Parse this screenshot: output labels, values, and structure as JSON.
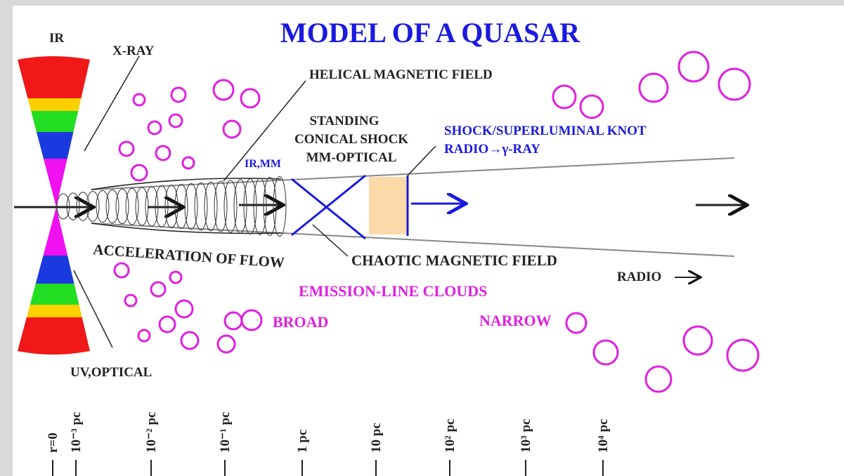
{
  "title": "MODEL OF A QUASAR",
  "labels": {
    "ir": "IR",
    "xray": "X-RAY",
    "helical": "HELICAL MAGNETIC FIELD",
    "standing": [
      "STANDING",
      "CONICAL SHOCK",
      "MM-OPTICAL"
    ],
    "irmm": "IR,MM",
    "shock": "SHOCK/SUPERLUMINAL KNOT",
    "radio_gamma": "RADIO→γ-RAY",
    "acceleration": "ACCELERATION OF FLOW",
    "chaotic": "CHAOTIC MAGNETIC FIELD",
    "radio": "RADIO",
    "emission": "EMISSION-LINE CLOUDS",
    "broad": "BROAD",
    "narrow": "NARROW",
    "uvoptical": "UV,OPTICAL"
  },
  "scale": [
    "r=0",
    "10⁻³ pc",
    "10⁻² pc",
    "10⁻¹ pc",
    "1 pc",
    "10 pc",
    "10² pc",
    "10³ pc",
    "10⁴ pc"
  ]
}
